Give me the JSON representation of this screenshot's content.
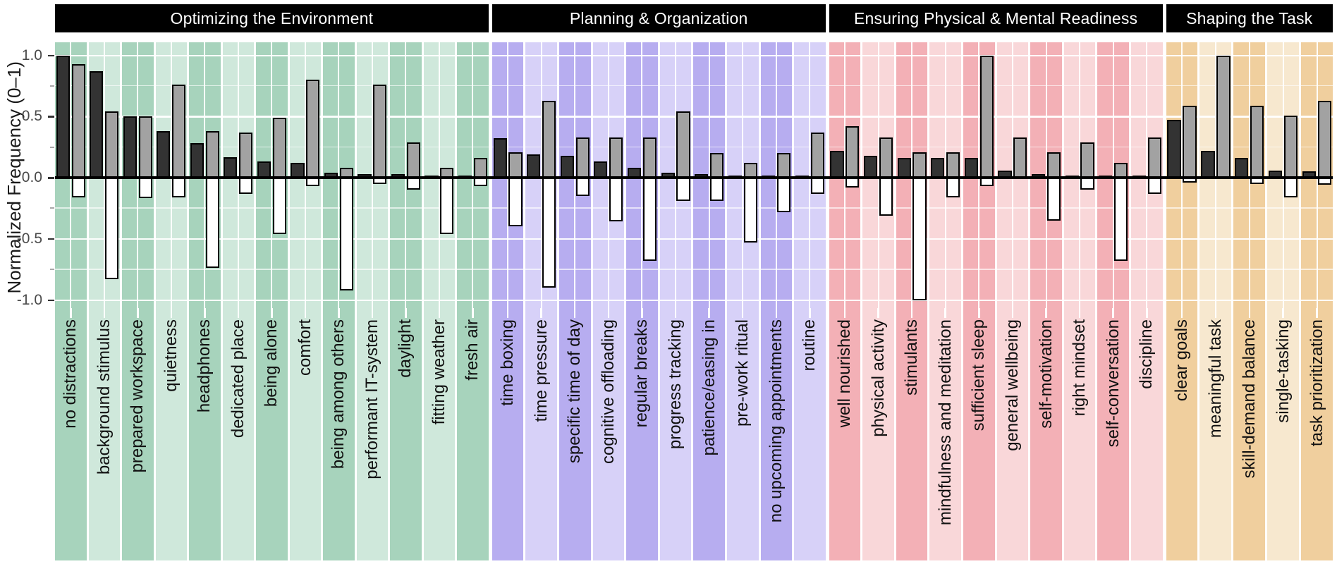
{
  "chart_data": {
    "type": "bar",
    "title": "",
    "ylabel": "Normalized Frequency (0–1)",
    "ylim": [
      -1.07,
      1.11
    ],
    "yticks_major": [
      1.0,
      0.5,
      0.0,
      -0.5,
      -1.0
    ],
    "ytick_labels": [
      "1.0",
      "0.5",
      "0.0",
      "-0.5",
      "-1.0"
    ],
    "yticks_minor": [
      0.75,
      0.25,
      -0.25,
      -0.75
    ],
    "grid": "white-on-striped-background",
    "legend": "none",
    "series_colors": {
      "dark": "#333333",
      "gray": "#a2a2a2",
      "white": "#ffffff"
    },
    "bar_border_color": "#000000",
    "panels": [
      {
        "title": "Optimizing the Environment",
        "stripe_dark": "#a7d3bc",
        "stripe_light": "#cfe8db",
        "categories": [
          "no distractions",
          "background stimulus",
          "prepared workspace",
          "quietness",
          "headphones",
          "dedicated place",
          "being alone",
          "comfort",
          "being among others",
          "performant IT-system",
          "daylight",
          "fitting weather",
          "fresh air"
        ],
        "series": [
          {
            "name": "dark",
            "values": [
              1.0,
              0.87,
              0.5,
              0.38,
              0.28,
              0.17,
              0.13,
              0.12,
              0.04,
              0.03,
              0.03,
              0.02,
              0.02
            ]
          },
          {
            "name": "gray",
            "values": [
              0.93,
              0.54,
              0.5,
              0.76,
              0.38,
              0.37,
              0.49,
              0.8,
              0.08,
              0.76,
              0.29,
              0.08,
              0.16
            ]
          },
          {
            "name": "white",
            "values": [
              -0.16,
              -0.83,
              -0.17,
              -0.16,
              -0.74,
              -0.13,
              -0.46,
              -0.07,
              -0.92,
              -0.05,
              -0.1,
              -0.46,
              -0.07
            ]
          }
        ]
      },
      {
        "title": "Planning & Organization",
        "stripe_dark": "#b7adf0",
        "stripe_light": "#d7d1f8",
        "categories": [
          "time boxing",
          "time pressure",
          "specific time of day",
          "cognitive offloading",
          "regular breaks",
          "progress tracking",
          "patience/easing in",
          "pre-work ritual",
          "no upcoming appointments",
          "routine"
        ],
        "series": [
          {
            "name": "dark",
            "values": [
              0.32,
              0.19,
              0.18,
              0.13,
              0.08,
              0.04,
              0.03,
              0.02,
              0.02,
              0.02
            ]
          },
          {
            "name": "gray",
            "values": [
              0.21,
              0.63,
              0.33,
              0.33,
              0.33,
              0.54,
              0.2,
              0.12,
              0.2,
              0.37
            ]
          },
          {
            "name": "white",
            "values": [
              -0.4,
              -0.9,
              -0.15,
              -0.36,
              -0.68,
              -0.19,
              -0.19,
              -0.53,
              -0.28,
              -0.13
            ]
          }
        ]
      },
      {
        "title": "Ensuring Physical & Mental Readiness",
        "stripe_dark": "#f3b0b6",
        "stripe_light": "#f9d7d9",
        "categories": [
          "well nourished",
          "physical activity",
          "stimulants",
          "mindfulness and meditation",
          "sufficient sleep",
          "general wellbeing",
          "self-motivation",
          "right mindset",
          "self-conversation",
          "discipline"
        ],
        "series": [
          {
            "name": "dark",
            "values": [
              0.22,
              0.18,
              0.16,
              0.16,
              0.16,
              0.06,
              0.03,
              0.02,
              0.02,
              0.02
            ]
          },
          {
            "name": "gray",
            "values": [
              0.42,
              0.33,
              0.21,
              0.21,
              1.0,
              0.33,
              0.21,
              0.29,
              0.12,
              0.33
            ]
          },
          {
            "name": "white",
            "values": [
              -0.08,
              -0.31,
              -1.0,
              -0.16,
              -0.07,
              0,
              -0.35,
              -0.1,
              -0.68,
              -0.13
            ]
          }
        ]
      },
      {
        "title": "Shaping the Task",
        "stripe_dark": "#f0cf9e",
        "stripe_light": "#f7e8cf",
        "categories": [
          "clear goals",
          "meaningful task",
          "skill-demand balance",
          "single-tasking",
          "task prioritization"
        ],
        "series": [
          {
            "name": "dark",
            "values": [
              0.47,
              0.22,
              0.16,
              0.06,
              0.05
            ]
          },
          {
            "name": "gray",
            "values": [
              0.59,
              1.0,
              0.59,
              0.51,
              0.63
            ]
          },
          {
            "name": "white",
            "values": [
              -0.04,
              0,
              -0.05,
              -0.16,
              -0.06
            ]
          }
        ]
      }
    ]
  }
}
